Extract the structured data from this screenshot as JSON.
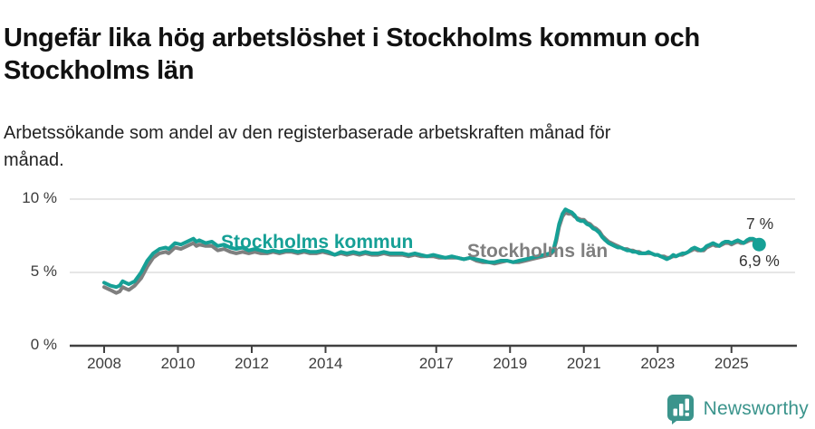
{
  "title": "Ungefär lika hög arbetslöshet i Stockholms kommun och Stockholms län",
  "title_lines": [
    "Ungefär lika hög arbetslöshet i Stockholms kommun och",
    "Stockholms län"
  ],
  "subtitle": "Arbetssökande som andel av den registerbaserade arbetskraften månad för månad.",
  "subtitle_lines": [
    "Arbetssökande som andel av den registerbaserade arbetskraften månad för",
    "månad."
  ],
  "footer": {
    "brand": "Newsworthy"
  },
  "colors": {
    "kommun_line": "#16a096",
    "lan_line": "#7f7f7f",
    "grid": "#e6e6e6",
    "axis": "#404040",
    "logo": "#3b948c",
    "title_text": "#111111",
    "tick_text": "#3c3c3c"
  },
  "chart_data": {
    "type": "line",
    "title": "Ungefär lika hög arbetslöshet i Stockholms kommun och Stockholms län",
    "xlabel": "",
    "ylabel": "",
    "unit": "%",
    "grid": "horizontal-only",
    "legend": "inline-labels-on-lines",
    "xlim": [
      2007.1,
      2026.8
    ],
    "ylim": [
      0,
      10.8
    ],
    "y_ticks": [
      {
        "label": "10 %",
        "value": 10
      },
      {
        "label": "5 %",
        "value": 5
      },
      {
        "label": "0 %",
        "value": 0
      }
    ],
    "x_ticks": [
      {
        "label": "2008",
        "year": 2008
      },
      {
        "label": "2010",
        "year": 2010
      },
      {
        "label": "2012",
        "year": 2012
      },
      {
        "label": "2014",
        "year": 2014
      },
      {
        "label": "2017",
        "year": 2017
      },
      {
        "label": "2019",
        "year": 2019
      },
      {
        "label": "2021",
        "year": 2021
      },
      {
        "label": "2023",
        "year": 2023
      },
      {
        "label": "2025",
        "year": 2025
      }
    ],
    "x": [
      2008.0,
      2008.17,
      2008.33,
      2008.42,
      2008.5,
      2008.58,
      2008.67,
      2008.83,
      2009.0,
      2009.17,
      2009.33,
      2009.5,
      2009.67,
      2009.75,
      2009.92,
      2010.08,
      2010.25,
      2010.42,
      2010.5,
      2010.58,
      2010.75,
      2010.92,
      2011.08,
      2011.25,
      2011.42,
      2011.58,
      2011.75,
      2011.92,
      2012.08,
      2012.25,
      2012.42,
      2012.58,
      2012.75,
      2012.92,
      2013.08,
      2013.25,
      2013.42,
      2013.58,
      2013.75,
      2013.92,
      2014.08,
      2014.25,
      2014.42,
      2014.58,
      2014.75,
      2014.92,
      2015.08,
      2015.25,
      2015.42,
      2015.58,
      2015.75,
      2015.92,
      2016.08,
      2016.25,
      2016.42,
      2016.58,
      2016.75,
      2016.92,
      2017.08,
      2017.25,
      2017.42,
      2017.58,
      2017.75,
      2017.92,
      2018.08,
      2018.25,
      2018.42,
      2018.58,
      2018.75,
      2018.92,
      2019.08,
      2019.25,
      2019.42,
      2019.58,
      2019.75,
      2019.92,
      2020.08,
      2020.17,
      2020.25,
      2020.33,
      2020.42,
      2020.5,
      2020.58,
      2020.67,
      2020.75,
      2020.83,
      2020.92,
      2021.0,
      2021.08,
      2021.17,
      2021.25,
      2021.33,
      2021.42,
      2021.5,
      2021.58,
      2021.67,
      2021.75,
      2021.83,
      2021.92,
      2022.0,
      2022.08,
      2022.17,
      2022.25,
      2022.33,
      2022.42,
      2022.5,
      2022.58,
      2022.67,
      2022.75,
      2022.83,
      2022.92,
      2023.0,
      2023.08,
      2023.17,
      2023.25,
      2023.33,
      2023.42,
      2023.5,
      2023.58,
      2023.67,
      2023.75,
      2023.83,
      2023.92,
      2024.0,
      2024.08,
      2024.17,
      2024.25,
      2024.33,
      2024.42,
      2024.5,
      2024.58,
      2024.67,
      2024.75,
      2024.83,
      2024.92,
      2025.0,
      2025.08,
      2025.17,
      2025.25,
      2025.33,
      2025.42,
      2025.5,
      2025.58,
      2025.67,
      2025.75
    ],
    "series": [
      {
        "name": "Stockholms kommun",
        "color": "#16a096",
        "end_value_label": "6,9 %",
        "values": [
          4.3,
          4.1,
          4.0,
          4.1,
          4.4,
          4.3,
          4.2,
          4.4,
          5.0,
          5.8,
          6.3,
          6.6,
          6.7,
          6.6,
          7.0,
          6.9,
          7.1,
          7.3,
          7.1,
          7.2,
          7.0,
          7.1,
          6.8,
          6.9,
          6.7,
          6.6,
          6.7,
          6.5,
          6.6,
          6.5,
          6.4,
          6.5,
          6.4,
          6.5,
          6.5,
          6.4,
          6.5,
          6.4,
          6.4,
          6.5,
          6.4,
          6.2,
          6.4,
          6.3,
          6.4,
          6.3,
          6.4,
          6.3,
          6.3,
          6.4,
          6.3,
          6.3,
          6.3,
          6.2,
          6.3,
          6.2,
          6.1,
          6.2,
          6.1,
          6.0,
          6.1,
          6.0,
          5.9,
          6.0,
          5.9,
          5.8,
          5.7,
          5.7,
          5.8,
          5.8,
          5.7,
          5.8,
          5.9,
          6.0,
          6.1,
          6.2,
          6.3,
          6.5,
          7.3,
          8.3,
          9.0,
          9.3,
          9.2,
          9.1,
          8.9,
          8.6,
          8.5,
          8.5,
          8.3,
          8.2,
          8.0,
          7.9,
          7.7,
          7.4,
          7.2,
          7.0,
          6.9,
          6.8,
          6.7,
          6.7,
          6.6,
          6.5,
          6.5,
          6.4,
          6.4,
          6.3,
          6.3,
          6.3,
          6.4,
          6.3,
          6.2,
          6.2,
          6.1,
          6.0,
          5.9,
          6.0,
          6.2,
          6.1,
          6.2,
          6.3,
          6.3,
          6.4,
          6.6,
          6.7,
          6.6,
          6.5,
          6.6,
          6.8,
          6.9,
          7.0,
          6.9,
          6.8,
          7.0,
          7.1,
          7.1,
          7.0,
          7.1,
          7.2,
          7.1,
          7.0,
          7.2,
          7.3,
          7.3,
          7.2,
          6.9
        ]
      },
      {
        "name": "Stockholms län",
        "color": "#7f7f7f",
        "end_value_label": "7 %",
        "values": [
          4.0,
          3.8,
          3.6,
          3.7,
          4.0,
          3.9,
          3.8,
          4.1,
          4.6,
          5.4,
          6.0,
          6.3,
          6.4,
          6.3,
          6.7,
          6.6,
          6.8,
          7.0,
          6.8,
          6.9,
          6.8,
          6.8,
          6.5,
          6.6,
          6.4,
          6.3,
          6.4,
          6.3,
          6.4,
          6.3,
          6.3,
          6.4,
          6.3,
          6.4,
          6.4,
          6.3,
          6.4,
          6.3,
          6.3,
          6.4,
          6.3,
          6.2,
          6.3,
          6.2,
          6.3,
          6.2,
          6.3,
          6.2,
          6.2,
          6.3,
          6.2,
          6.2,
          6.2,
          6.1,
          6.2,
          6.1,
          6.1,
          6.1,
          6.0,
          6.0,
          6.0,
          6.0,
          5.9,
          6.0,
          5.8,
          5.7,
          5.7,
          5.6,
          5.7,
          5.8,
          5.7,
          5.7,
          5.8,
          5.9,
          6.0,
          6.1,
          6.2,
          6.4,
          7.1,
          8.1,
          8.8,
          9.1,
          9.0,
          9.0,
          8.8,
          8.7,
          8.6,
          8.6,
          8.4,
          8.3,
          8.1,
          8.0,
          7.8,
          7.5,
          7.3,
          7.1,
          7.0,
          6.9,
          6.8,
          6.7,
          6.6,
          6.6,
          6.5,
          6.5,
          6.4,
          6.4,
          6.3,
          6.3,
          6.3,
          6.3,
          6.2,
          6.2,
          6.1,
          6.1,
          6.0,
          6.0,
          6.1,
          6.1,
          6.2,
          6.2,
          6.3,
          6.4,
          6.5,
          6.6,
          6.5,
          6.5,
          6.5,
          6.7,
          6.8,
          6.9,
          6.8,
          6.8,
          6.9,
          7.0,
          7.0,
          6.9,
          7.0,
          7.1,
          7.0,
          7.0,
          7.1,
          7.2,
          7.2,
          7.1,
          7.0
        ]
      }
    ],
    "end_labels": [
      {
        "text": "7 %",
        "series": "Stockholms län"
      },
      {
        "text": "6,9 %",
        "series": "Stockholms kommun"
      }
    ],
    "end_dot": {
      "series": "Stockholms kommun"
    }
  }
}
